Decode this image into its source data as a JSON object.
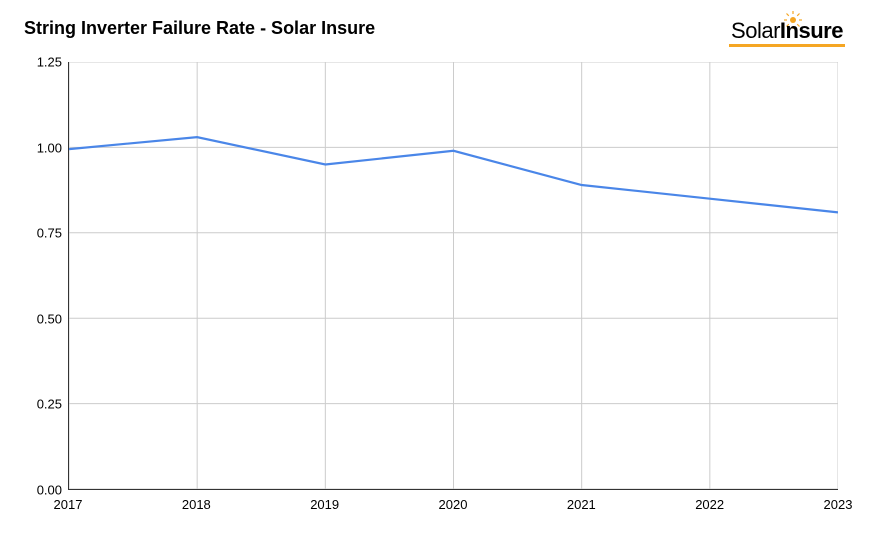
{
  "header": {
    "title": "String Inverter Failure Rate - Solar Insure",
    "logo": {
      "text_part1": "Solar",
      "text_part2": "Insure",
      "underline_color": "#f5a623",
      "sun_color": "#f5a623",
      "text_color": "#000000"
    }
  },
  "chart": {
    "type": "line",
    "x_values": [
      2017,
      2018,
      2019,
      2020,
      2021,
      2022,
      2023
    ],
    "y_values": [
      0.995,
      1.03,
      0.95,
      0.99,
      0.89,
      0.85,
      0.81
    ],
    "line_color": "#4a86e8",
    "line_width": 2.2,
    "background_color": "#ffffff",
    "grid_color": "#cccccc",
    "axis_color": "#333333",
    "xlim": [
      2017,
      2023
    ],
    "ylim": [
      0.0,
      1.25
    ],
    "x_ticks": [
      "2017",
      "2018",
      "2019",
      "2020",
      "2021",
      "2022",
      "2023"
    ],
    "y_ticks": [
      "0.00",
      "0.25",
      "0.50",
      "0.75",
      "1.00",
      "1.25"
    ],
    "tick_fontsize": 13,
    "title_fontsize": 18,
    "title_fontweight": "bold"
  }
}
